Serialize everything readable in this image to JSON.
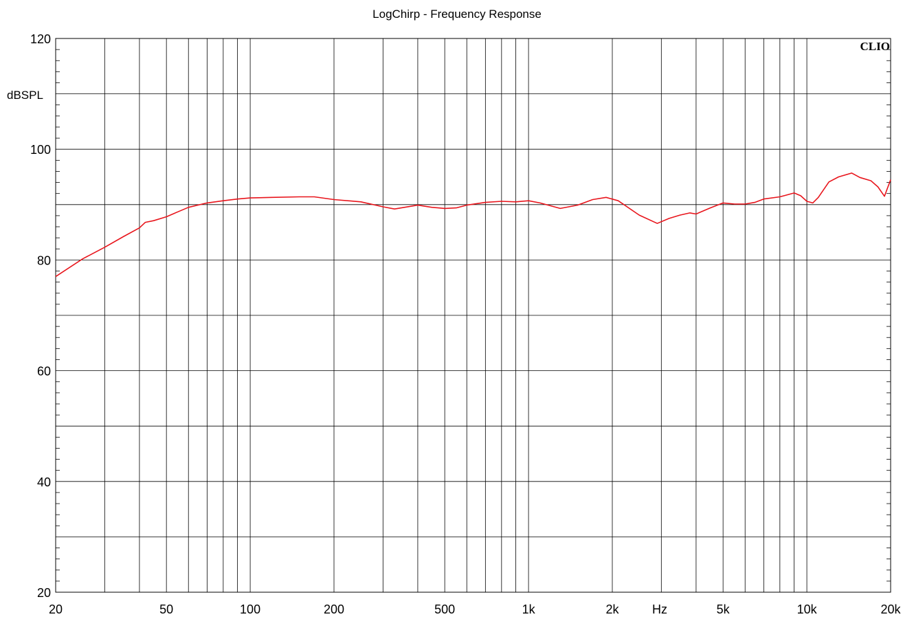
{
  "chart_data": {
    "type": "line",
    "title": "LogChirp - Frequency Response",
    "ylabel": "dBSPL",
    "xlabel": "Hz",
    "brand": "CLIO",
    "x_scale": "log",
    "xlim": [
      20,
      20000
    ],
    "ylim": [
      20,
      120
    ],
    "grid": true,
    "x_tick_labels": [
      {
        "value": 20,
        "label": "20"
      },
      {
        "value": 50,
        "label": "50"
      },
      {
        "value": 100,
        "label": "100"
      },
      {
        "value": 200,
        "label": "200"
      },
      {
        "value": 500,
        "label": "500"
      },
      {
        "value": 1000,
        "label": "1k"
      },
      {
        "value": 2000,
        "label": "2k"
      },
      {
        "value": 5000,
        "label": "5k"
      },
      {
        "value": 10000,
        "label": "10k"
      },
      {
        "value": 20000,
        "label": "20k"
      }
    ],
    "y_tick_labels": [
      {
        "value": 20,
        "label": "20"
      },
      {
        "value": 40,
        "label": "40"
      },
      {
        "value": 60,
        "label": "60"
      },
      {
        "value": 80,
        "label": "80"
      },
      {
        "value": 100,
        "label": "100"
      },
      {
        "value": 120,
        "label": "120"
      }
    ],
    "colors": {
      "series": "#e8141b",
      "grid": "#000000",
      "background": "#ffffff"
    },
    "series": [
      {
        "x": [
          20,
          25,
          30,
          35,
          40,
          42,
          45,
          50,
          55,
          60,
          70,
          80,
          90,
          100,
          120,
          150,
          170,
          200,
          250,
          300,
          330,
          400,
          450,
          500,
          550,
          600,
          700,
          800,
          900,
          1000,
          1100,
          1300,
          1500,
          1700,
          1900,
          2100,
          2500,
          2900,
          3200,
          3500,
          3800,
          4000,
          4500,
          5000,
          5500,
          6000,
          6500,
          7000,
          8000,
          9000,
          9500,
          10000,
          10500,
          11000,
          12000,
          13000,
          14500,
          15500,
          17000,
          18000,
          19000,
          20000
        ],
        "values": [
          77,
          80.2,
          82.3,
          84.2,
          85.8,
          86.8,
          87.1,
          87.8,
          88.7,
          89.5,
          90.3,
          90.7,
          91,
          91.2,
          91.3,
          91.4,
          91.4,
          90.9,
          90.5,
          89.6,
          89.2,
          89.9,
          89.5,
          89.3,
          89.4,
          89.9,
          90.4,
          90.6,
          90.5,
          90.7,
          90.3,
          89.3,
          89.9,
          90.9,
          91.3,
          90.7,
          88.1,
          86.6,
          87.5,
          88.1,
          88.5,
          88.3,
          89.4,
          90.3,
          90.1,
          90.1,
          90.4,
          91,
          91.4,
          92.1,
          91.6,
          90.6,
          90.3,
          91.3,
          94.1,
          95,
          95.7,
          94.9,
          94.3,
          93.2,
          91.5,
          94.5
        ]
      }
    ]
  }
}
